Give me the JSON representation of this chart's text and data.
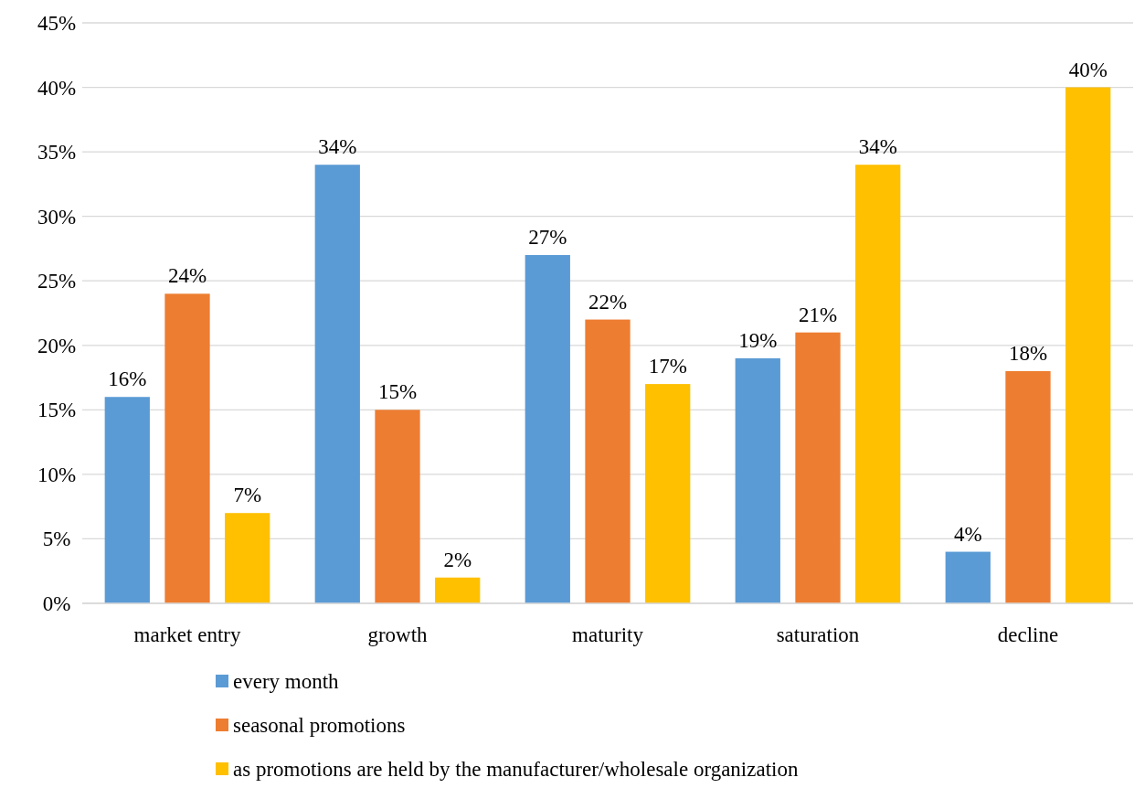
{
  "chart_data": {
    "type": "bar",
    "categories": [
      "market entry",
      "growth",
      "maturity",
      "saturation",
      "decline"
    ],
    "series": [
      {
        "name": "every month",
        "color": "#5b9bd5",
        "values": [
          16,
          34,
          27,
          19,
          4
        ],
        "value_labels": [
          "16%",
          "34%",
          "27%",
          "19%",
          "4%"
        ]
      },
      {
        "name": "seasonal promotions",
        "color": "#ed7d31",
        "values": [
          24,
          15,
          22,
          21,
          18
        ],
        "value_labels": [
          "24%",
          "15%",
          "22%",
          "21%",
          "18%"
        ]
      },
      {
        "name": "as promotions are held by the manufacturer/wholesale organization",
        "color": "#ffc000",
        "values": [
          7,
          2,
          17,
          34,
          40
        ],
        "value_labels": [
          "7%",
          "2%",
          "17%",
          "34%",
          "40%"
        ]
      }
    ],
    "ylim": [
      0,
      45
    ],
    "yticks": [
      {
        "value": 0,
        "label": "0%"
      },
      {
        "value": 5,
        "label": "5%"
      },
      {
        "value": 10,
        "label": "10%"
      },
      {
        "value": 15,
        "label": "15%"
      },
      {
        "value": 20,
        "label": "20%"
      },
      {
        "value": 25,
        "label": "25%"
      },
      {
        "value": 30,
        "label": "30%"
      },
      {
        "value": 35,
        "label": "35%"
      },
      {
        "value": 40,
        "label": "40%"
      },
      {
        "value": 45,
        "label": "45%"
      }
    ],
    "grid": "y",
    "legend": "bottom"
  }
}
